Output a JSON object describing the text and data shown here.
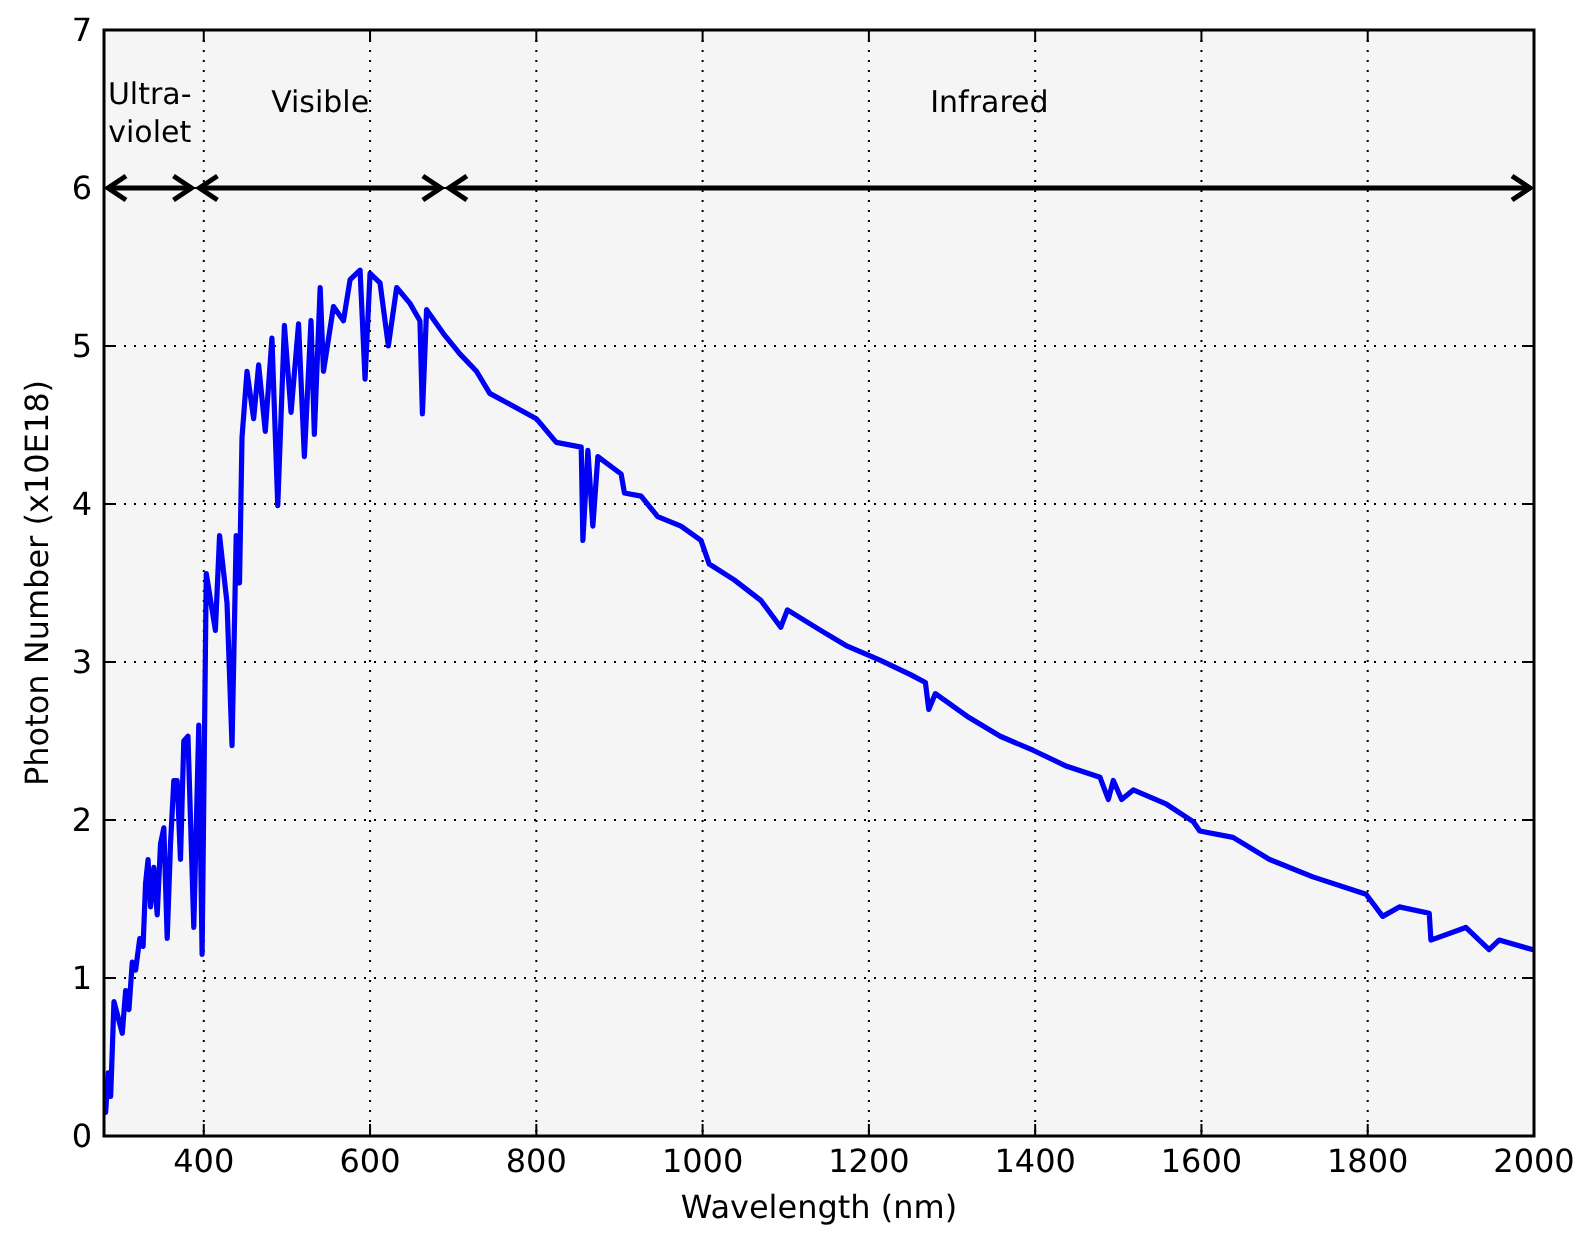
{
  "chart_data": {
    "type": "line",
    "xlabel": "Wavelength (nm)",
    "ylabel": "Photon Number (x10E18)",
    "xlim": [
      280,
      2000
    ],
    "xticks": [
      400,
      600,
      800,
      1000,
      1200,
      1400,
      1600,
      1800,
      2000
    ],
    "ylim": [
      0,
      7
    ],
    "yticks": [
      0,
      1,
      2,
      3,
      4,
      5,
      6,
      7
    ],
    "grid": true,
    "marker": "none",
    "line_style": "solid",
    "bands": [
      {
        "axis": "x",
        "from": 280,
        "to": 390,
        "label": "Ultra-\nviolet"
      },
      {
        "axis": "x",
        "from": 390,
        "to": 690,
        "label": "Visible"
      },
      {
        "axis": "x",
        "from": 690,
        "to": 2000,
        "label": "Infrared"
      }
    ],
    "series": [
      {
        "color": "#0000ff",
        "x": [
          282,
          285,
          288,
          292,
          297,
          302,
          306,
          310,
          314,
          318,
          323,
          327,
          330,
          333,
          336,
          340,
          344,
          348,
          352,
          356,
          360,
          364,
          368,
          372,
          376,
          381,
          388,
          394,
          398,
          403,
          414,
          419,
          428,
          434,
          439,
          443,
          446,
          452,
          460,
          466,
          474,
          482,
          489,
          497,
          505,
          514,
          521,
          529,
          533,
          540,
          544,
          556,
          568,
          576,
          588,
          594,
          600,
          612,
          622,
          632,
          648,
          660,
          663,
          668,
          688,
          708,
          728,
          744,
          772,
          800,
          824,
          854,
          856,
          862,
          868,
          874,
          902,
          906,
          926,
          946,
          974,
          998,
          1008,
          1038,
          1070,
          1094,
          1102,
          1142,
          1174,
          1214,
          1250,
          1268,
          1272,
          1280,
          1320,
          1358,
          1398,
          1438,
          1478,
          1488,
          1494,
          1504,
          1518,
          1558,
          1590,
          1598,
          1638,
          1682,
          1734,
          1798,
          1818,
          1838,
          1874,
          1876,
          1918,
          1946,
          1958,
          1998
        ],
        "values": [
          0.15,
          0.4,
          0.25,
          0.85,
          0.75,
          0.65,
          0.92,
          0.8,
          1.1,
          1.05,
          1.25,
          1.2,
          1.6,
          1.75,
          1.45,
          1.7,
          1.4,
          1.85,
          1.95,
          1.25,
          1.85,
          2.25,
          2.25,
          1.75,
          2.5,
          2.53,
          1.32,
          2.6,
          1.15,
          3.56,
          3.2,
          3.8,
          3.37,
          2.47,
          3.8,
          3.5,
          4.42,
          4.84,
          4.54,
          4.88,
          4.46,
          5.05,
          3.99,
          5.13,
          4.58,
          5.14,
          4.3,
          5.16,
          4.44,
          5.37,
          4.84,
          5.25,
          5.16,
          5.42,
          5.48,
          4.79,
          5.46,
          5.4,
          5.0,
          5.37,
          5.27,
          5.16,
          4.57,
          5.23,
          5.08,
          4.95,
          4.84,
          4.7,
          4.62,
          4.54,
          4.39,
          4.36,
          3.77,
          4.34,
          3.86,
          4.3,
          4.19,
          4.07,
          4.05,
          3.92,
          3.86,
          3.77,
          3.62,
          3.52,
          3.39,
          3.22,
          3.33,
          3.2,
          3.1,
          3.01,
          2.92,
          2.87,
          2.7,
          2.8,
          2.65,
          2.53,
          2.44,
          2.34,
          2.27,
          2.13,
          2.25,
          2.13,
          2.19,
          2.1,
          1.99,
          1.93,
          1.89,
          1.75,
          1.64,
          1.53,
          1.39,
          1.45,
          1.41,
          1.24,
          1.32,
          1.18,
          1.24,
          1.18
        ]
      }
    ]
  }
}
